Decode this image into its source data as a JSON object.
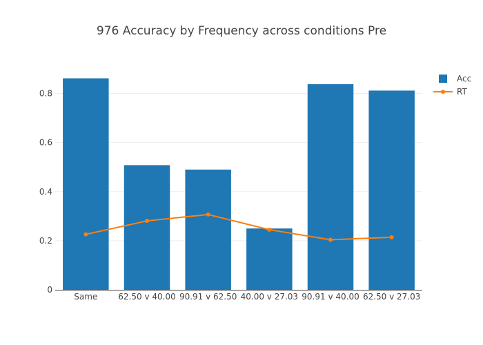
{
  "chart_data": {
    "type": "bar",
    "title": "976 Accuracy by Frequency across conditions Pre",
    "xlabel": "",
    "ylabel": "",
    "categories": [
      "Same",
      "62.50 v 40.00",
      "90.91 v 62.50",
      "40.00 v 27.03",
      "90.91 v 40.00",
      "62.50 v 27.03"
    ],
    "ylim": [
      0,
      0.9
    ],
    "yticks": [
      0,
      0.2,
      0.4,
      0.6,
      0.8
    ],
    "ytick_labels": [
      "0",
      "0.2",
      "0.4",
      "0.6",
      "0.8"
    ],
    "grid": true,
    "legend_position": "top-right",
    "series": [
      {
        "name": "Acc",
        "kind": "bar",
        "color": "#1f77b4",
        "values": [
          0.862,
          0.508,
          0.49,
          0.25,
          0.838,
          0.812
        ]
      },
      {
        "name": "RT",
        "kind": "line",
        "color": "#ff7f0e",
        "values": [
          0.226,
          0.281,
          0.307,
          0.245,
          0.204,
          0.214
        ]
      }
    ]
  }
}
